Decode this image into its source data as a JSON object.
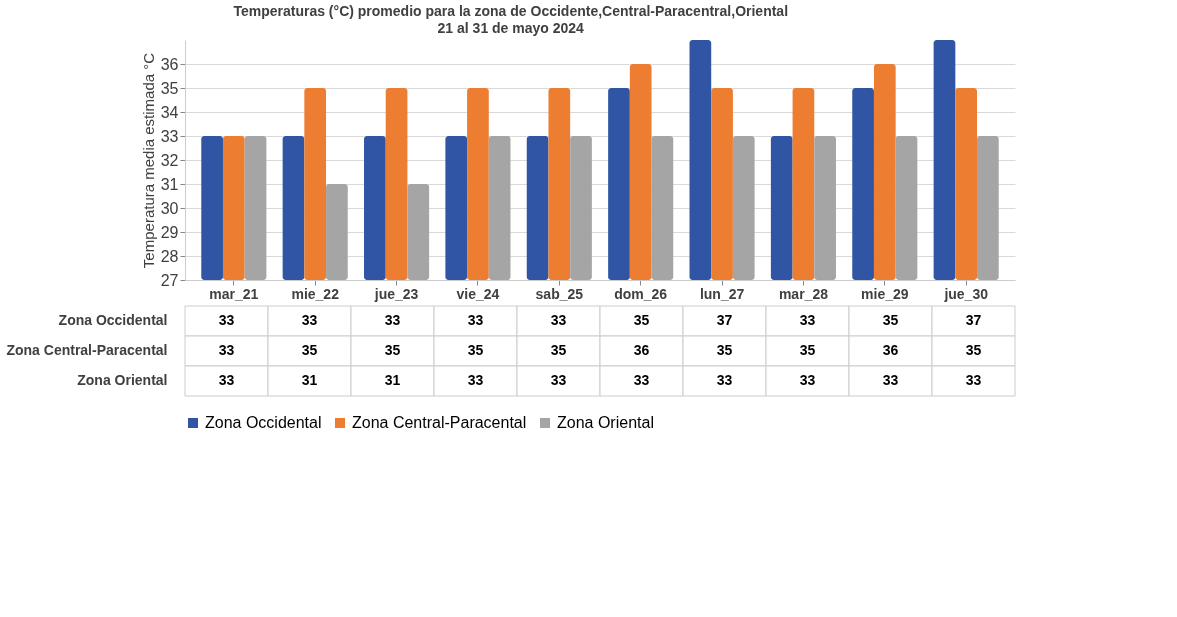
{
  "chart_data": {
    "type": "bar",
    "title": "Temperaturas (°C) promedio para la zona de Occidente,Central-Paracentral,Oriental",
    "subtitle": "21 al 31 de mayo 2024",
    "ylabel": "Temperatura media  estimada  °C",
    "categories": [
      "mar_21",
      "mie_22",
      "jue_23",
      "vie_24",
      "sab_25",
      "dom_26",
      "lun_27",
      "mar_28",
      "mie_29",
      "jue_30"
    ],
    "series": [
      {
        "name": "Zona Occidental",
        "color": "#2f55a4",
        "values": [
          33,
          33,
          33,
          33,
          33,
          35,
          37,
          33,
          35,
          37
        ]
      },
      {
        "name": "Zona Central-Paracental",
        "color": "#ed7d31",
        "values": [
          33,
          35,
          35,
          35,
          35,
          36,
          35,
          35,
          36,
          35
        ]
      },
      {
        "name": "Zona Oriental",
        "color": "#a5a5a5",
        "values": [
          33,
          31,
          31,
          33,
          33,
          33,
          33,
          33,
          33,
          33
        ]
      }
    ],
    "ylim": [
      27,
      37
    ],
    "yticks": [
      27,
      28,
      29,
      30,
      31,
      32,
      33,
      34,
      35,
      36
    ],
    "grid": "y",
    "legend": "bottom",
    "data_labels": true
  }
}
